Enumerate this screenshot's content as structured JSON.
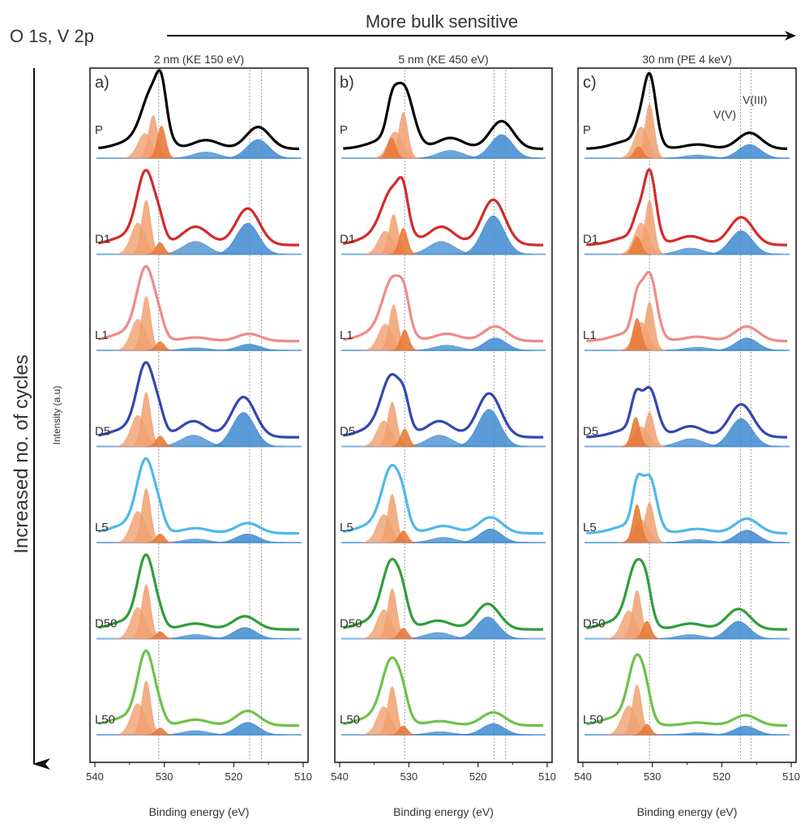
{
  "figure": {
    "top_label": "O 1s, V 2p",
    "top_arrow_label": "More bulk sensitive",
    "left_arrow_label": "Increased no. of cycles",
    "intensity_label": "Intensity (a.u)"
  },
  "colors": {
    "P": "#000000",
    "D1": "#d42a2a",
    "L1": "#f08a8a",
    "D5": "#3347b0",
    "L5": "#4fb8ea",
    "D50": "#2e9e3a",
    "L50": "#6cc24a",
    "oxygen_fill": "#f0a070",
    "oxygen_fill_dark": "#e87a3a",
    "vanadium_fill": "#3e8ad0",
    "baseline": "#7ab0e0",
    "marker_line": "#999999"
  },
  "chart_data": [
    {
      "type": "line",
      "panel": "a)",
      "title": "2 nm (KE 150 eV)",
      "xlabel": "Binding energy (eV)",
      "xlim": [
        540,
        510
      ],
      "ticks": [
        540,
        530,
        520,
        510
      ],
      "tick_labels": [
        "540",
        "530",
        "520",
        "510"
      ],
      "reference_lines": [
        530.8,
        517.7,
        516.0
      ],
      "series": [
        {
          "name": "P",
          "o_main": 531.6,
          "o_h": 0.75,
          "o_w": 1.5,
          "o_shoulder": 530.4,
          "o_sh_h": 0.55,
          "v_main": 516.5,
          "v_h": 0.3,
          "sat": 524.0,
          "sat_h": 0.12
        },
        {
          "name": "D1",
          "o_main": 532.6,
          "o_h": 0.95,
          "o_w": 1.3,
          "o_shoulder": 530.6,
          "o_sh_h": 0.2,
          "v_main": 518.0,
          "v_h": 0.5,
          "sat": 525.5,
          "sat_h": 0.25
        },
        {
          "name": "L1",
          "o_main": 532.6,
          "o_h": 0.95,
          "o_w": 1.3,
          "o_shoulder": 530.6,
          "o_sh_h": 0.15,
          "v_main": 517.8,
          "v_h": 0.1,
          "sat": 525.5,
          "sat_h": 0.05
        },
        {
          "name": "D5",
          "o_main": 532.6,
          "o_h": 0.95,
          "o_w": 1.3,
          "o_shoulder": 530.6,
          "o_sh_h": 0.18,
          "v_main": 518.6,
          "v_h": 0.55,
          "sat": 525.8,
          "sat_h": 0.22
        },
        {
          "name": "L5",
          "o_main": 532.6,
          "o_h": 0.95,
          "o_w": 1.3,
          "o_shoulder": 530.6,
          "o_sh_h": 0.15,
          "v_main": 518.0,
          "v_h": 0.14,
          "sat": 525.5,
          "sat_h": 0.07
        },
        {
          "name": "D50",
          "o_main": 532.6,
          "o_h": 0.95,
          "o_w": 1.2,
          "o_shoulder": 530.6,
          "o_sh_h": 0.12,
          "v_main": 518.4,
          "v_h": 0.18,
          "sat": 525.5,
          "sat_h": 0.08
        },
        {
          "name": "L50",
          "o_main": 532.6,
          "o_h": 0.95,
          "o_w": 1.2,
          "o_shoulder": 530.6,
          "o_sh_h": 0.12,
          "v_main": 518.0,
          "v_h": 0.2,
          "sat": 525.5,
          "sat_h": 0.08
        }
      ]
    },
    {
      "type": "line",
      "panel": "b)",
      "title": "5 nm (KE 450 eV)",
      "xlabel": "Binding energy (eV)",
      "xlim": [
        540,
        510
      ],
      "ticks": [
        540,
        530,
        520,
        510
      ],
      "tick_labels": [
        "540",
        "530",
        "520",
        "510"
      ],
      "reference_lines": [
        530.6,
        517.7,
        516.0
      ],
      "series": [
        {
          "name": "P",
          "o_main": 530.8,
          "o_h": 0.8,
          "o_w": 1.4,
          "o_shoulder": 532.5,
          "o_sh_h": 0.35,
          "v_main": 516.6,
          "v_h": 0.38,
          "sat": 524.0,
          "sat_h": 0.15
        },
        {
          "name": "D1",
          "o_main": 532.2,
          "o_h": 0.7,
          "o_w": 1.6,
          "o_shoulder": 530.8,
          "o_sh_h": 0.45,
          "v_main": 517.8,
          "v_h": 0.62,
          "sat": 525.3,
          "sat_h": 0.25
        },
        {
          "name": "L1",
          "o_main": 532.2,
          "o_h": 0.8,
          "o_w": 1.5,
          "o_shoulder": 530.6,
          "o_sh_h": 0.35,
          "v_main": 517.5,
          "v_h": 0.2,
          "sat": 524.5,
          "sat_h": 0.1
        },
        {
          "name": "D5",
          "o_main": 532.4,
          "o_h": 0.78,
          "o_w": 1.5,
          "o_shoulder": 530.6,
          "o_sh_h": 0.3,
          "v_main": 518.4,
          "v_h": 0.6,
          "sat": 525.6,
          "sat_h": 0.22
        },
        {
          "name": "L5",
          "o_main": 532.4,
          "o_h": 0.85,
          "o_w": 1.4,
          "o_shoulder": 530.8,
          "o_sh_h": 0.2,
          "v_main": 518.2,
          "v_h": 0.22,
          "sat": 525.0,
          "sat_h": 0.1
        },
        {
          "name": "D50",
          "o_main": 532.4,
          "o_h": 0.88,
          "o_w": 1.4,
          "o_shoulder": 530.8,
          "o_sh_h": 0.18,
          "v_main": 518.6,
          "v_h": 0.35,
          "sat": 525.8,
          "sat_h": 0.12
        },
        {
          "name": "L50",
          "o_main": 532.4,
          "o_h": 0.85,
          "o_w": 1.4,
          "o_shoulder": 530.8,
          "o_sh_h": 0.15,
          "v_main": 517.8,
          "v_h": 0.18,
          "sat": 525.5,
          "sat_h": 0.06
        }
      ]
    },
    {
      "type": "line",
      "panel": "c)",
      "title": "30 nm (PE 4 keV)",
      "xlabel": "Binding energy (eV)",
      "xlim": [
        540,
        510
      ],
      "ticks": [
        540,
        530,
        520,
        510
      ],
      "tick_labels": [
        "540",
        "530",
        "520",
        "510"
      ],
      "reference_lines": [
        530.4,
        517.3,
        515.8
      ],
      "annotations": [
        "V(III)",
        "V(V)"
      ],
      "series": [
        {
          "name": "P",
          "o_main": 530.4,
          "o_h": 0.95,
          "o_w": 0.9,
          "o_shoulder": 532.0,
          "o_sh_h": 0.2,
          "v_main": 516.0,
          "v_h": 0.22,
          "sat": 523.5,
          "sat_h": 0.06
        },
        {
          "name": "D1",
          "o_main": 530.4,
          "o_h": 0.95,
          "o_w": 0.9,
          "o_shoulder": 532.2,
          "o_sh_h": 0.3,
          "v_main": 517.2,
          "v_h": 0.38,
          "sat": 524.5,
          "sat_h": 0.12
        },
        {
          "name": "L1",
          "o_main": 530.4,
          "o_h": 0.85,
          "o_w": 1.0,
          "o_shoulder": 532.2,
          "o_sh_h": 0.55,
          "v_main": 516.4,
          "v_h": 0.2,
          "sat": 523.5,
          "sat_h": 0.06
        },
        {
          "name": "D5",
          "o_main": 530.4,
          "o_h": 0.6,
          "o_w": 1.1,
          "o_shoulder": 532.4,
          "o_sh_h": 0.5,
          "v_main": 517.2,
          "v_h": 0.45,
          "sat": 524.5,
          "sat_h": 0.15
        },
        {
          "name": "L5",
          "o_main": 530.4,
          "o_h": 0.7,
          "o_w": 1.0,
          "o_shoulder": 532.2,
          "o_sh_h": 0.65,
          "v_main": 516.4,
          "v_h": 0.2,
          "sat": 523.5,
          "sat_h": 0.06
        },
        {
          "name": "D50",
          "o_main": 532.2,
          "o_h": 0.85,
          "o_w": 1.3,
          "o_shoulder": 530.8,
          "o_sh_h": 0.3,
          "v_main": 517.6,
          "v_h": 0.28,
          "sat": 524.5,
          "sat_h": 0.08
        },
        {
          "name": "L50",
          "o_main": 532.2,
          "o_h": 0.88,
          "o_w": 1.2,
          "o_shoulder": 530.8,
          "o_sh_h": 0.18,
          "v_main": 516.6,
          "v_h": 0.14,
          "sat": 523.5,
          "sat_h": 0.04
        }
      ]
    }
  ]
}
